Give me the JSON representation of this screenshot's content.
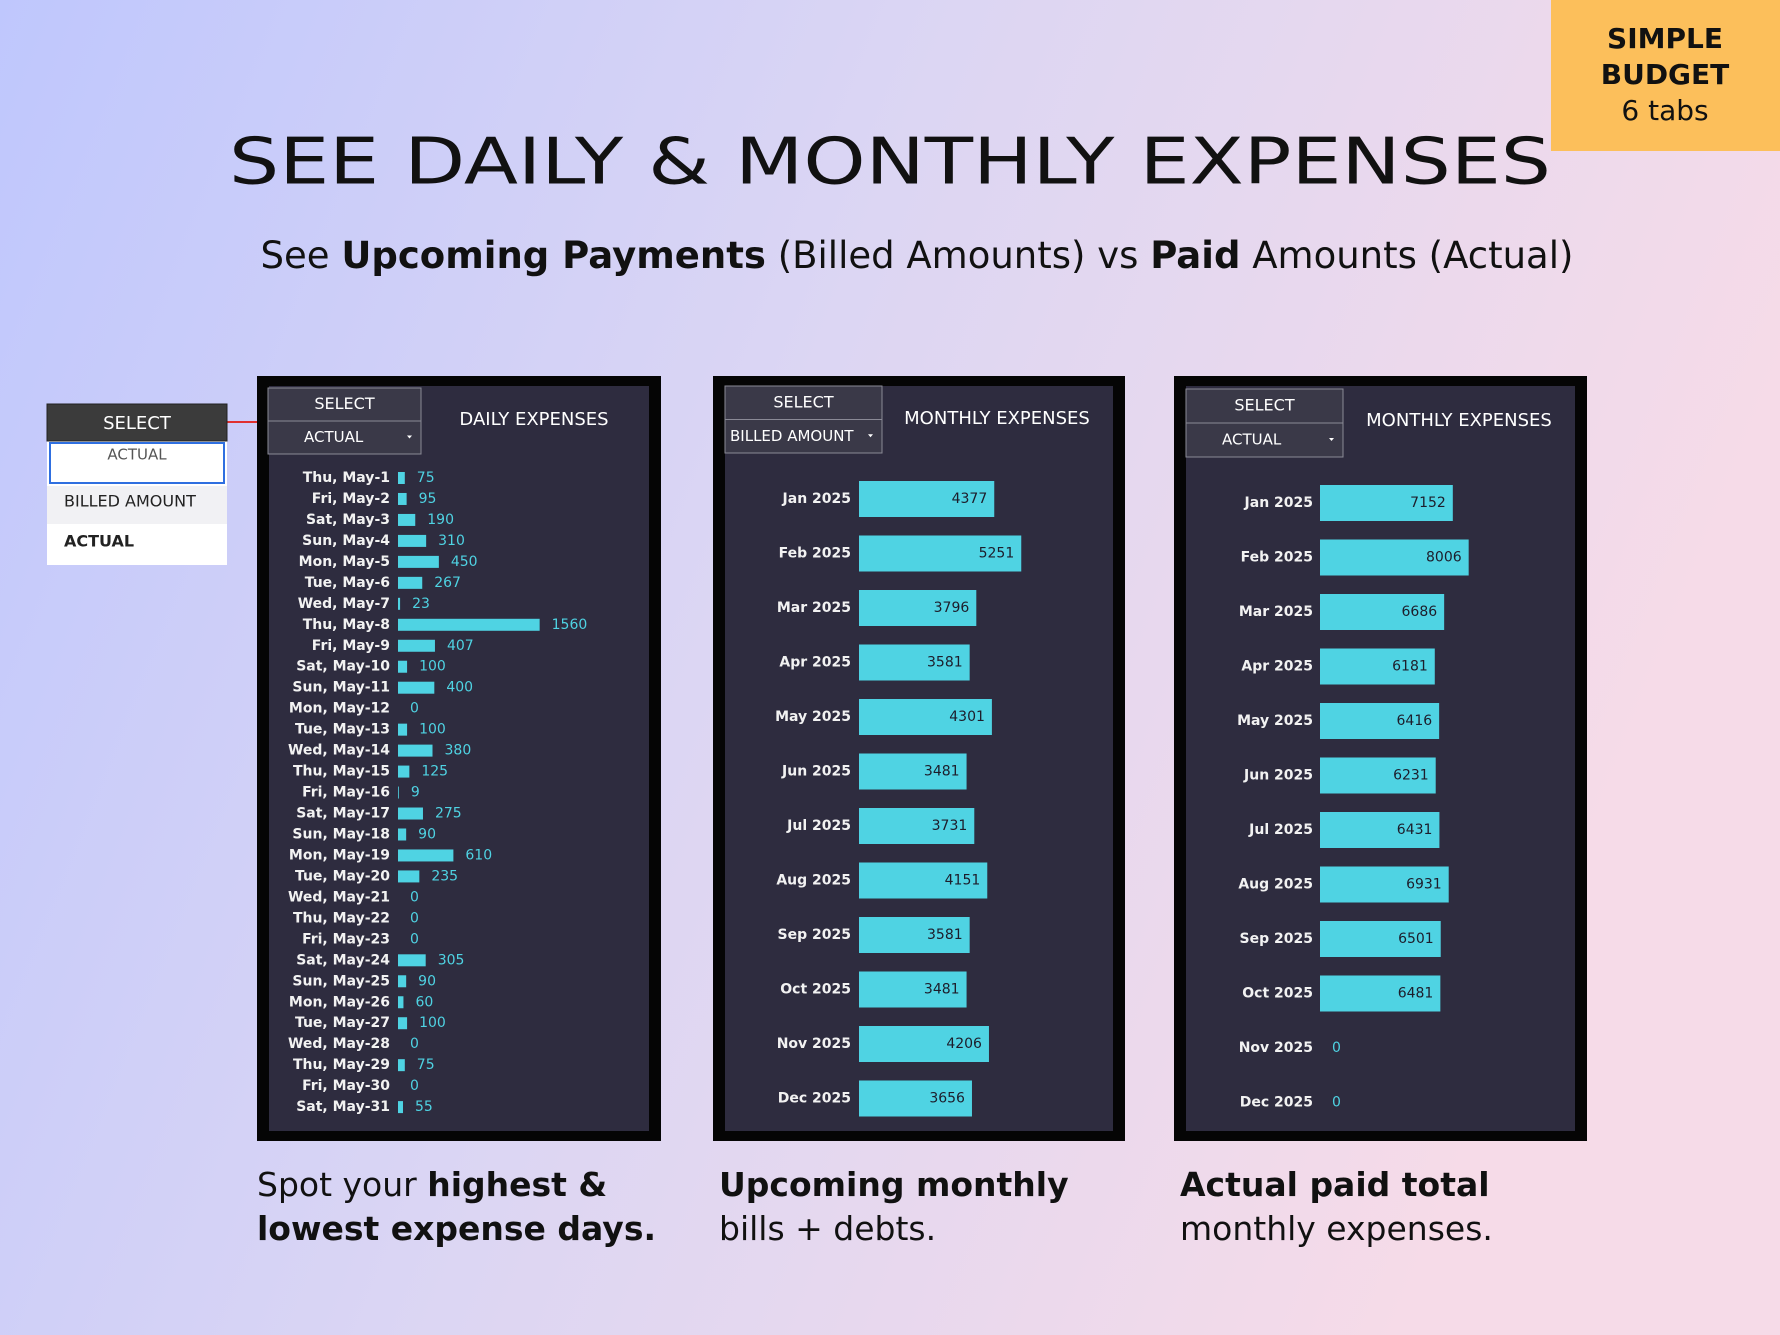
{
  "badge": {
    "lines": [
      "SIMPLE",
      "BUDGET",
      "6 tabs"
    ]
  },
  "title": "SEE DAILY & MONTHLY EXPENSES",
  "subtitle": [
    {
      "text": "See ",
      "bold": false
    },
    {
      "text": "Upcoming Payments",
      "bold": true
    },
    {
      "text": " (Billed Amounts) vs ",
      "bold": false
    },
    {
      "text": "Paid",
      "bold": true
    },
    {
      "text": " Amounts (Actual)",
      "bold": false
    }
  ],
  "dropdown": {
    "header": "SELECT",
    "input": "ACTUAL",
    "options": [
      "BILLED AMOUNT",
      "ACTUAL"
    ]
  },
  "chart_data": [
    {
      "type": "bar",
      "title": "DAILY EXPENSES",
      "select_label": "SELECT",
      "select_value": "ACTUAL",
      "color": "#4fd3e3",
      "categories": [
        "Thu, May-1",
        "Fri, May-2",
        "Sat, May-3",
        "Sun, May-4",
        "Mon, May-5",
        "Tue, May-6",
        "Wed, May-7",
        "Thu, May-8",
        "Fri, May-9",
        "Sat, May-10",
        "Sun, May-11",
        "Mon, May-12",
        "Tue, May-13",
        "Wed, May-14",
        "Thu, May-15",
        "Fri, May-16",
        "Sat, May-17",
        "Sun, May-18",
        "Mon, May-19",
        "Tue, May-20",
        "Wed, May-21",
        "Thu, May-22",
        "Fri, May-23",
        "Sat, May-24",
        "Sun, May-25",
        "Mon, May-26",
        "Tue, May-27",
        "Wed, May-28",
        "Thu, May-29",
        "Fri, May-30",
        "Sat, May-31"
      ],
      "values": [
        75,
        95,
        190,
        310,
        450,
        267,
        23,
        1560,
        407,
        100,
        400,
        0,
        100,
        380,
        125,
        9,
        275,
        90,
        610,
        235,
        0,
        0,
        0,
        305,
        90,
        60,
        100,
        0,
        75,
        0,
        55
      ]
    },
    {
      "type": "bar",
      "title": "MONTHLY EXPENSES",
      "select_label": "SELECT",
      "select_value": "BILLED AMOUNT",
      "color": "#4fd3e3",
      "categories": [
        "Jan 2025",
        "Feb 2025",
        "Mar 2025",
        "Apr 2025",
        "May 2025",
        "Jun 2025",
        "Jul 2025",
        "Aug 2025",
        "Sep 2025",
        "Oct 2025",
        "Nov 2025",
        "Dec 2025"
      ],
      "values": [
        4377,
        5251,
        3796,
        3581,
        4301,
        3481,
        3731,
        4151,
        3581,
        3481,
        4206,
        3656
      ]
    },
    {
      "type": "bar",
      "title": "MONTHLY EXPENSES",
      "select_label": "SELECT",
      "select_value": "ACTUAL",
      "color": "#4fd3e3",
      "categories": [
        "Jan 2025",
        "Feb 2025",
        "Mar 2025",
        "Apr 2025",
        "May 2025",
        "Jun 2025",
        "Jul 2025",
        "Aug 2025",
        "Sep 2025",
        "Oct 2025",
        "Nov 2025",
        "Dec 2025"
      ],
      "values": [
        7152,
        8006,
        6686,
        6181,
        6416,
        6231,
        6431,
        6931,
        6501,
        6481,
        0,
        0
      ]
    }
  ],
  "captions": [
    [
      [
        {
          "text": "Spot your ",
          "bold": false
        },
        {
          "text": "highest &",
          "bold": true
        }
      ],
      [
        {
          "text": "lowest expense days.",
          "bold": true
        }
      ]
    ],
    [
      [
        {
          "text": "Upcoming monthly",
          "bold": true
        }
      ],
      [
        {
          "text": "bills + debts.",
          "bold": false
        }
      ]
    ],
    [
      [
        {
          "text": "Actual paid total",
          "bold": true
        }
      ],
      [
        {
          "text": "monthly expenses.",
          "bold": false
        }
      ]
    ]
  ]
}
